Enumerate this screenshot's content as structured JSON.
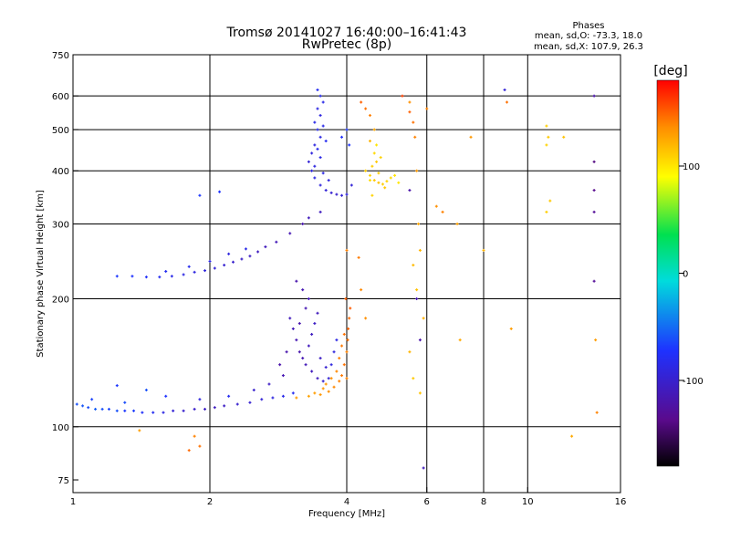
{
  "header": {
    "title": "Tromsø 20141027 16:40:00–16:41:43",
    "subtitle": "RwPretec (8p)"
  },
  "info": {
    "heading": "Phases",
    "line_o": "mean, sd,O: -73.3, 18.0",
    "line_x": "mean, sd,X: 107.9, 26.3"
  },
  "colorbar": {
    "unit": "[deg]",
    "min": -180,
    "max": 180,
    "ticks": [
      {
        "value": 100,
        "label": "100"
      },
      {
        "value": 0,
        "label": "0"
      },
      {
        "value": -100,
        "label": "-100"
      }
    ]
  },
  "chart_data": {
    "type": "scatter",
    "xlabel": "Frequency [MHz]",
    "ylabel": "Stationary phase Virtual Height [km]",
    "x_scale": "log",
    "y_scale": "log",
    "xlim": [
      1,
      16
    ],
    "ylim": [
      70,
      750
    ],
    "grid": true,
    "x_ticks": [
      {
        "value": 1,
        "label": "1"
      },
      {
        "value": 2,
        "label": "2"
      },
      {
        "value": 4,
        "label": "4"
      },
      {
        "value": 6,
        "label": "6"
      },
      {
        "value": 8,
        "label": "8"
      },
      {
        "value": 10,
        "label": "10"
      },
      {
        "value": 16,
        "label": "16"
      }
    ],
    "y_ticks": [
      {
        "value": 75,
        "label": "75"
      },
      {
        "value": 100,
        "label": "100"
      },
      {
        "value": 200,
        "label": "200"
      },
      {
        "value": 300,
        "label": "300"
      },
      {
        "value": 400,
        "label": "400"
      },
      {
        "value": 500,
        "label": "500"
      },
      {
        "value": 600,
        "label": "600"
      },
      {
        "value": 750,
        "label": "750"
      }
    ],
    "x_grid": [
      2,
      4,
      6,
      8,
      10
    ],
    "y_grid": [
      100,
      200,
      300,
      400,
      500,
      600
    ],
    "series": [
      {
        "values": [
          [
            1.02,
            113,
            -60
          ],
          [
            1.05,
            112,
            -58
          ],
          [
            1.08,
            111,
            -62
          ],
          [
            1.12,
            110,
            -55
          ],
          [
            1.16,
            110,
            -60
          ],
          [
            1.2,
            110,
            -65
          ],
          [
            1.25,
            109,
            -60
          ],
          [
            1.3,
            109,
            -70
          ],
          [
            1.36,
            109,
            -68
          ],
          [
            1.42,
            108,
            -75
          ],
          [
            1.5,
            108,
            -80
          ],
          [
            1.58,
            108,
            -88
          ],
          [
            1.66,
            109,
            -95
          ],
          [
            1.75,
            109,
            -100
          ],
          [
            1.85,
            110,
            -102
          ],
          [
            1.95,
            110,
            -105
          ],
          [
            2.05,
            111,
            -108
          ],
          [
            2.15,
            112,
            -105
          ],
          [
            2.3,
            113,
            -100
          ],
          [
            2.45,
            114,
            -98
          ],
          [
            2.6,
            116,
            -95
          ],
          [
            2.75,
            117,
            -90
          ],
          [
            2.9,
            118,
            -85
          ],
          [
            3.05,
            120,
            -80
          ],
          [
            1.1,
            116,
            -65
          ],
          [
            1.3,
            114,
            -62
          ],
          [
            1.6,
            118,
            -72
          ],
          [
            1.9,
            116,
            -90
          ],
          [
            2.2,
            118,
            -80
          ],
          [
            2.5,
            122,
            -100
          ],
          [
            2.7,
            126,
            -105
          ],
          [
            1.25,
            125,
            -70
          ],
          [
            1.45,
            122,
            -60
          ]
        ]
      },
      {
        "values": [
          [
            1.25,
            226,
            -70
          ],
          [
            1.35,
            226,
            -72
          ],
          [
            1.45,
            225,
            -75
          ],
          [
            1.55,
            225,
            -80
          ],
          [
            1.65,
            226,
            -85
          ],
          [
            1.75,
            228,
            -88
          ],
          [
            1.85,
            231,
            -90
          ],
          [
            1.95,
            233,
            -92
          ],
          [
            2.05,
            236,
            -95
          ],
          [
            2.15,
            240,
            -98
          ],
          [
            2.25,
            244,
            -100
          ],
          [
            2.35,
            248,
            -103
          ],
          [
            2.45,
            252,
            -105
          ],
          [
            2.55,
            258,
            -108
          ],
          [
            2.65,
            265,
            -110
          ],
          [
            2.8,
            272,
            -112
          ],
          [
            3.0,
            285,
            -115
          ],
          [
            3.2,
            300,
            -118
          ],
          [
            1.6,
            232,
            -80
          ],
          [
            1.8,
            238,
            -82
          ],
          [
            2.0,
            245,
            -88
          ],
          [
            2.2,
            255,
            -90
          ],
          [
            2.4,
            262,
            -85
          ],
          [
            1.9,
            350,
            -70
          ],
          [
            2.1,
            357,
            -72
          ],
          [
            3.3,
            310,
            -110
          ],
          [
            3.5,
            320,
            -108
          ]
        ]
      },
      {
        "values": [
          [
            3.0,
            180,
            -110
          ],
          [
            3.05,
            170,
            -112
          ],
          [
            3.1,
            160,
            -115
          ],
          [
            3.15,
            150,
            -118
          ],
          [
            3.2,
            145,
            -115
          ],
          [
            3.25,
            140,
            -112
          ],
          [
            3.3,
            155,
            -110
          ],
          [
            3.35,
            165,
            -108
          ],
          [
            3.4,
            175,
            -105
          ],
          [
            3.45,
            185,
            -110
          ],
          [
            3.3,
            200,
            -112
          ],
          [
            3.2,
            210,
            -115
          ],
          [
            3.1,
            220,
            -118
          ],
          [
            3.35,
            135,
            -110
          ],
          [
            3.45,
            130,
            -108
          ],
          [
            3.55,
            128,
            -100
          ],
          [
            3.65,
            130,
            -95
          ],
          [
            3.7,
            140,
            -90
          ],
          [
            3.75,
            150,
            -92
          ],
          [
            3.8,
            160,
            -88
          ],
          [
            3.25,
            190,
            -115
          ],
          [
            3.15,
            175,
            -118
          ],
          [
            3.5,
            145,
            -105
          ],
          [
            3.6,
            138,
            -98
          ],
          [
            2.85,
            140,
            -120
          ],
          [
            2.95,
            150,
            -118
          ],
          [
            2.9,
            132,
            -115
          ]
        ]
      },
      {
        "values": [
          [
            3.1,
            117,
            130
          ],
          [
            3.3,
            118,
            128
          ],
          [
            3.5,
            119,
            132
          ],
          [
            3.65,
            121,
            135
          ],
          [
            3.75,
            124,
            138
          ],
          [
            3.85,
            128,
            140
          ],
          [
            3.9,
            132,
            142
          ],
          [
            3.95,
            140,
            145
          ],
          [
            4.0,
            150,
            140
          ],
          [
            4.02,
            160,
            145
          ],
          [
            4.03,
            170,
            150
          ],
          [
            4.05,
            180,
            148
          ],
          [
            4.07,
            190,
            152
          ],
          [
            3.8,
            135,
            138
          ],
          [
            3.7,
            130,
            135
          ],
          [
            3.6,
            126,
            132
          ],
          [
            3.85,
            145,
            140
          ],
          [
            3.9,
            155,
            142
          ],
          [
            3.95,
            165,
            145
          ],
          [
            3.4,
            120,
            130
          ],
          [
            3.55,
            123,
            132
          ],
          [
            4.0,
            130,
            140
          ],
          [
            3.98,
            200,
            150
          ],
          [
            4.25,
            250,
            142
          ],
          [
            4.3,
            210,
            138
          ],
          [
            4.4,
            180,
            135
          ],
          [
            4.0,
            260,
            140
          ]
        ]
      },
      {
        "values": [
          [
            3.45,
            620,
            -80
          ],
          [
            3.5,
            600,
            -82
          ],
          [
            3.55,
            580,
            -85
          ],
          [
            3.45,
            560,
            -88
          ],
          [
            3.5,
            540,
            -90
          ],
          [
            3.4,
            520,
            -85
          ],
          [
            3.45,
            500,
            -82
          ],
          [
            3.5,
            480,
            -88
          ],
          [
            3.4,
            460,
            -90
          ],
          [
            3.35,
            440,
            -92
          ],
          [
            3.3,
            420,
            -95
          ],
          [
            3.35,
            400,
            -90
          ],
          [
            3.4,
            385,
            -88
          ],
          [
            3.5,
            370,
            -92
          ],
          [
            3.6,
            360,
            -95
          ],
          [
            3.7,
            355,
            -98
          ],
          [
            3.8,
            352,
            -100
          ],
          [
            3.9,
            350,
            -95
          ],
          [
            4.0,
            352,
            -92
          ],
          [
            3.55,
            510,
            -85
          ],
          [
            3.6,
            470,
            -80
          ],
          [
            3.45,
            450,
            -84
          ],
          [
            3.5,
            430,
            -86
          ],
          [
            3.4,
            410,
            -90
          ],
          [
            3.55,
            395,
            -88
          ],
          [
            3.65,
            380,
            -92
          ],
          [
            4.0,
            500,
            -70
          ],
          [
            3.9,
            480,
            -75
          ],
          [
            4.05,
            460,
            -72
          ],
          [
            4.1,
            370,
            -95
          ]
        ]
      },
      {
        "values": [
          [
            4.4,
            400,
            110
          ],
          [
            4.5,
            390,
            108
          ],
          [
            4.6,
            380,
            112
          ],
          [
            4.7,
            375,
            115
          ],
          [
            4.8,
            372,
            110
          ],
          [
            4.9,
            378,
            108
          ],
          [
            5.0,
            385,
            105
          ],
          [
            5.1,
            390,
            102
          ],
          [
            4.55,
            410,
            110
          ],
          [
            4.65,
            420,
            112
          ],
          [
            4.75,
            430,
            108
          ],
          [
            4.6,
            440,
            106
          ],
          [
            4.5,
            380,
            104
          ],
          [
            4.7,
            395,
            110
          ],
          [
            4.85,
            365,
            112
          ],
          [
            5.2,
            375,
            100
          ],
          [
            4.65,
            460,
            100
          ],
          [
            4.55,
            350,
            108
          ]
        ]
      },
      {
        "values": [
          [
            4.3,
            580,
            150
          ],
          [
            4.4,
            560,
            145
          ],
          [
            4.5,
            540,
            140
          ],
          [
            4.5,
            470,
            120
          ],
          [
            4.6,
            500,
            125
          ],
          [
            5.3,
            600,
            160
          ],
          [
            5.5,
            550,
            150
          ],
          [
            5.6,
            520,
            145
          ],
          [
            5.65,
            480,
            140
          ],
          [
            5.5,
            580,
            135
          ],
          [
            5.7,
            400,
            130
          ],
          [
            5.75,
            300,
            125
          ],
          [
            5.8,
            260,
            120
          ],
          [
            5.6,
            240,
            118
          ],
          [
            5.7,
            210,
            115
          ],
          [
            5.9,
            180,
            122
          ],
          [
            5.5,
            150,
            120
          ],
          [
            5.6,
            130,
            112
          ],
          [
            5.8,
            120,
            115
          ],
          [
            6.3,
            330,
            135
          ],
          [
            6.5,
            320,
            140
          ],
          [
            7.0,
            300,
            128
          ],
          [
            7.1,
            160,
            125
          ],
          [
            7.5,
            480,
            132
          ],
          [
            8.0,
            260,
            120
          ],
          [
            9.0,
            580,
            145
          ],
          [
            9.2,
            170,
            130
          ],
          [
            8.9,
            620,
            -95
          ],
          [
            11.0,
            510,
            110
          ],
          [
            11.1,
            480,
            112
          ],
          [
            11.0,
            460,
            108
          ],
          [
            11.2,
            340,
            112
          ],
          [
            11.0,
            320,
            110
          ],
          [
            12.0,
            480,
            115
          ],
          [
            12.5,
            95,
            125
          ],
          [
            14.0,
            600,
            -120
          ],
          [
            14.0,
            420,
            -140
          ],
          [
            14.0,
            360,
            -135
          ],
          [
            14.0,
            320,
            -130
          ],
          [
            14.0,
            220,
            -130
          ],
          [
            14.1,
            160,
            130
          ],
          [
            14.2,
            108,
            140
          ],
          [
            5.9,
            80,
            -110
          ],
          [
            5.8,
            160,
            -120
          ],
          [
            5.7,
            200,
            -115
          ],
          [
            6.0,
            560,
            140
          ],
          [
            5.5,
            360,
            -120
          ],
          [
            1.85,
            95,
            140
          ],
          [
            1.9,
            90,
            145
          ],
          [
            1.8,
            88,
            148
          ],
          [
            1.4,
            98,
            130
          ]
        ]
      }
    ]
  }
}
